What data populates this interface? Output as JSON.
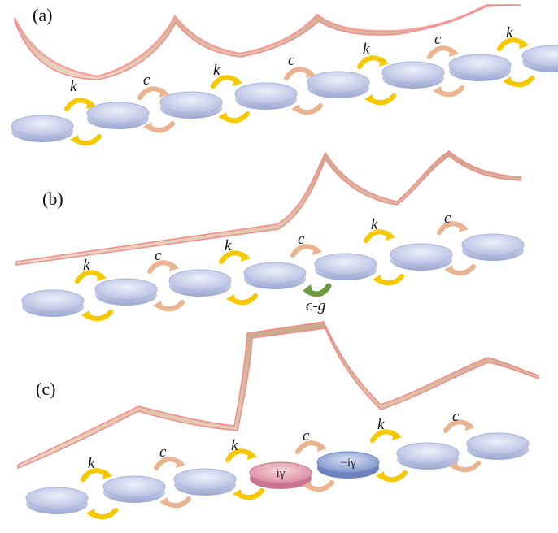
{
  "colors": {
    "profile_fill": "#dcc1a5",
    "profile_edge": "#f07a7a",
    "disk_blue_top": "#c6cbe6",
    "disk_blue_side": "#9aa3cf",
    "disk_gain_top": "#ea9eb2",
    "disk_gain_side": "#c97490",
    "disk_loss_top": "#9fb2de",
    "disk_loss_side": "#6d82bf",
    "arrow_k": "#f6c800",
    "arrow_c": "#e9b48f",
    "arrow_g": "#6f9a44"
  },
  "coupling_labels": {
    "k": "k",
    "c": "c",
    "cg": "c-g"
  },
  "resonator_labels": {
    "gain": "iγ",
    "loss": "−iγ"
  },
  "panels": [
    {
      "label": "(a)",
      "chain": [
        "k",
        "c",
        "k",
        "c",
        "k",
        "c",
        "k"
      ],
      "defect": null
    },
    {
      "label": "(b)",
      "chain": [
        "k",
        "c",
        "k",
        "c",
        "k",
        "c"
      ],
      "defect": "c-g"
    },
    {
      "label": "(c)",
      "chain": [
        "k",
        "c",
        "k",
        "c",
        "k",
        "c"
      ],
      "defect": "iγ/−iγ"
    }
  ]
}
